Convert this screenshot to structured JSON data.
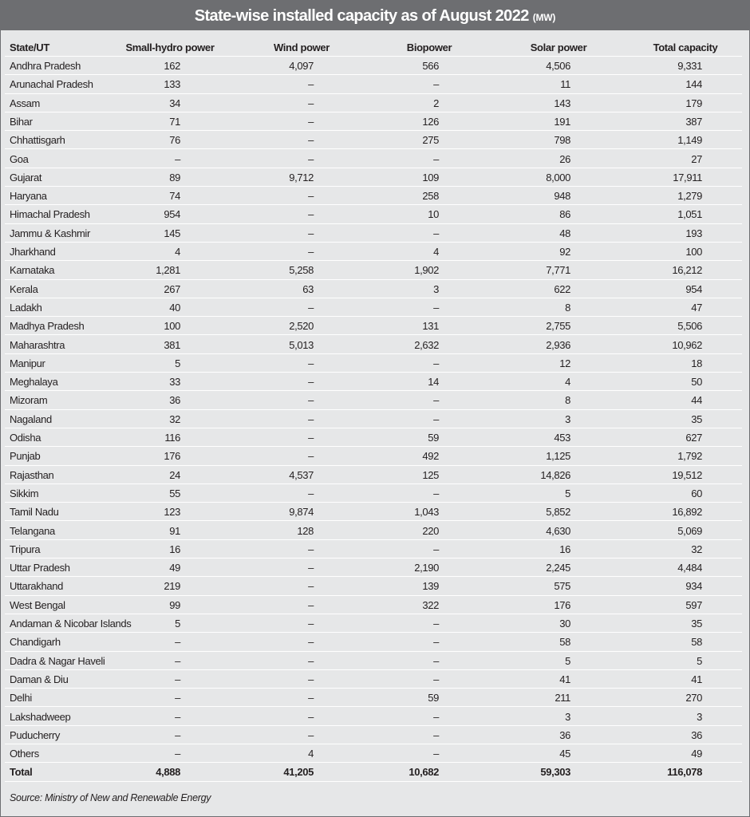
{
  "title": "State-wise installed capacity as of August 2022",
  "title_unit": "(MW)",
  "columns": [
    "State/UT",
    "Small-hydro power",
    "Wind power",
    "Biopower",
    "Solar power",
    "Total capacity"
  ],
  "rows": [
    [
      "Andhra Pradesh",
      "162",
      "4,097",
      "566",
      "4,506",
      "9,331"
    ],
    [
      "Arunachal Pradesh",
      "133",
      "–",
      "–",
      "11",
      "144"
    ],
    [
      "Assam",
      "34",
      "–",
      "2",
      "143",
      "179"
    ],
    [
      "Bihar",
      "71",
      "–",
      "126",
      "191",
      "387"
    ],
    [
      "Chhattisgarh",
      "76",
      "–",
      "275",
      "798",
      "1,149"
    ],
    [
      "Goa",
      "–",
      "–",
      "–",
      "26",
      "27"
    ],
    [
      "Gujarat",
      "89",
      "9,712",
      "109",
      "8,000",
      "17,911"
    ],
    [
      "Haryana",
      "74",
      "–",
      "258",
      "948",
      "1,279"
    ],
    [
      "Himachal Pradesh",
      "954",
      "–",
      "10",
      "86",
      "1,051"
    ],
    [
      "Jammu & Kashmir",
      "145",
      "–",
      "–",
      "48",
      "193"
    ],
    [
      "Jharkhand",
      "4",
      "–",
      "4",
      "92",
      "100"
    ],
    [
      "Karnataka",
      "1,281",
      "5,258",
      "1,902",
      "7,771",
      "16,212"
    ],
    [
      "Kerala",
      "267",
      "63",
      "3",
      "622",
      "954"
    ],
    [
      "Ladakh",
      "40",
      "–",
      "–",
      "8",
      "47"
    ],
    [
      "Madhya Pradesh",
      "100",
      "2,520",
      "131",
      "2,755",
      "5,506"
    ],
    [
      "Maharashtra",
      "381",
      "5,013",
      "2,632",
      "2,936",
      "10,962"
    ],
    [
      "Manipur",
      "5",
      "–",
      "–",
      "12",
      "18"
    ],
    [
      "Meghalaya",
      "33",
      "–",
      "14",
      "4",
      "50"
    ],
    [
      "Mizoram",
      "36",
      "–",
      "–",
      "8",
      "44"
    ],
    [
      "Nagaland",
      "32",
      "–",
      "–",
      "3",
      "35"
    ],
    [
      "Odisha",
      "116",
      "–",
      "59",
      "453",
      "627"
    ],
    [
      "Punjab",
      "176",
      "–",
      "492",
      "1,125",
      "1,792"
    ],
    [
      "Rajasthan",
      "24",
      "4,537",
      "125",
      "14,826",
      "19,512"
    ],
    [
      "Sikkim",
      "55",
      "–",
      "–",
      "5",
      "60"
    ],
    [
      "Tamil Nadu",
      "123",
      "9,874",
      "1,043",
      "5,852",
      "16,892"
    ],
    [
      "Telangana",
      "91",
      "128",
      "220",
      "4,630",
      "5,069"
    ],
    [
      "Tripura",
      "16",
      "–",
      "–",
      "16",
      "32"
    ],
    [
      "Uttar Pradesh",
      "49",
      "–",
      "2,190",
      "2,245",
      "4,484"
    ],
    [
      "Uttarakhand",
      "219",
      "–",
      "139",
      "575",
      "934"
    ],
    [
      "West Bengal",
      "99",
      "–",
      "322",
      "176",
      "597"
    ],
    [
      "Andaman & Nicobar Islands",
      "5",
      "–",
      "–",
      "30",
      "35"
    ],
    [
      "Chandigarh",
      "–",
      "–",
      "–",
      "58",
      "58"
    ],
    [
      "Dadra & Nagar Haveli",
      "–",
      "–",
      "–",
      "5",
      "5"
    ],
    [
      "Daman & Diu",
      "–",
      "–",
      "–",
      "41",
      "41"
    ],
    [
      "Delhi",
      "–",
      "–",
      "59",
      "211",
      "270"
    ],
    [
      "Lakshadweep",
      "–",
      "–",
      "–",
      "3",
      "3"
    ],
    [
      "Puducherry",
      "–",
      "–",
      "–",
      "36",
      "36"
    ],
    [
      "Others",
      "–",
      "4",
      "–",
      "45",
      "49"
    ]
  ],
  "total": [
    "Total",
    "4,888",
    "41,205",
    "10,682",
    "59,303",
    "116,078"
  ],
  "source": "Source: Ministry of New and Renewable Energy",
  "colors": {
    "title_bar": "#6d6e71",
    "background": "#e6e7e8",
    "separator": "#ffffff"
  }
}
